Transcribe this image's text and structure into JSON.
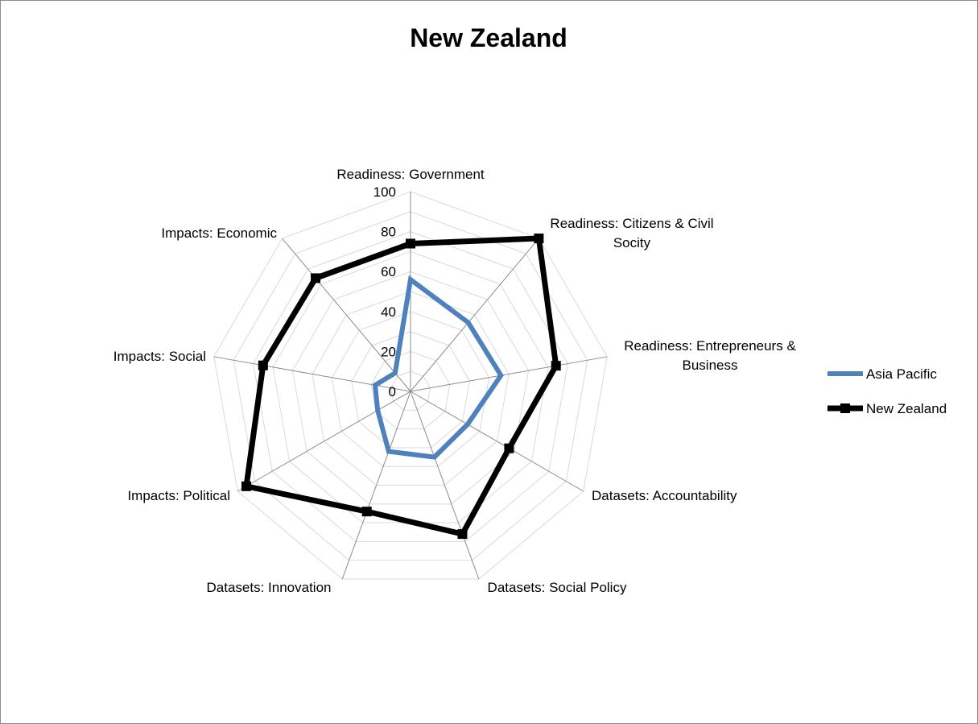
{
  "chart_data": {
    "type": "radar",
    "title": "New Zealand",
    "categories": [
      [
        "Readiness: Government"
      ],
      [
        "Readiness: Citizens & Civil",
        "Socity"
      ],
      [
        "Readiness: Entrepreneurs &",
        "Business"
      ],
      [
        "Datasets: Accountability"
      ],
      [
        "Datasets: Social Policy"
      ],
      [
        "Datasets: Innovation"
      ],
      [
        "Impacts: Political"
      ],
      [
        "Impacts: Social"
      ],
      [
        "Impacts: Economic"
      ]
    ],
    "rlim": [
      0,
      100
    ],
    "ticks": [
      "0",
      "20",
      "40",
      "60",
      "80",
      "100"
    ],
    "tick_values": [
      0,
      20,
      40,
      60,
      80,
      100
    ],
    "grid": true,
    "legend_position": "right",
    "series": [
      {
        "name": "Asia Pacific",
        "values": [
          56,
          45,
          46,
          33,
          35,
          32,
          19,
          18,
          12
        ],
        "color": "#4f81bd",
        "marker": "none"
      },
      {
        "name": "New Zealand",
        "values": [
          74,
          100,
          74,
          57,
          76,
          64,
          95,
          75,
          74
        ],
        "color": "#000000",
        "marker": "square"
      }
    ]
  }
}
